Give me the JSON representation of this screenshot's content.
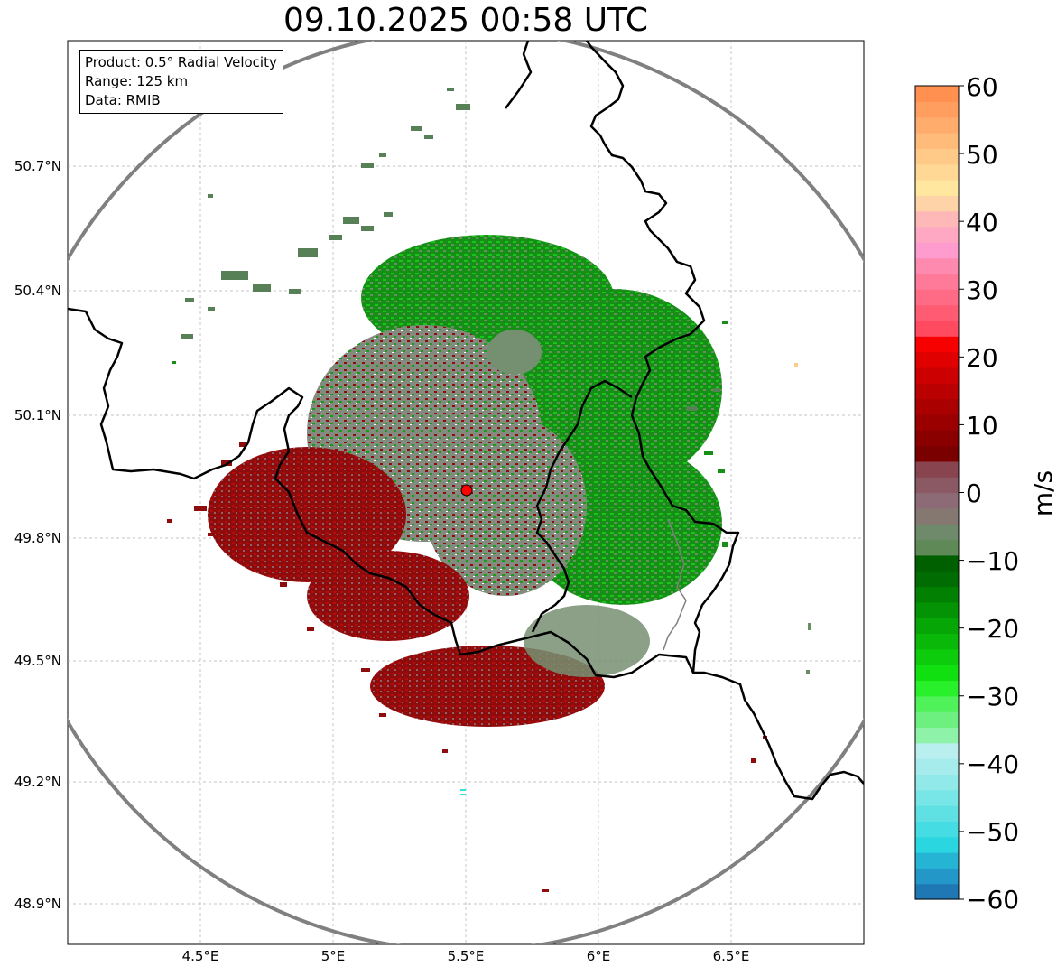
{
  "title": "09.10.2025 00:58 UTC",
  "info": {
    "product": "Product: 0.5° Radial Velocity",
    "range": "Range: 125 km",
    "data": "Data: RMIB"
  },
  "axes": {
    "lat_labels": [
      "50.7°N",
      "50.4°N",
      "50.1°N",
      "49.8°N",
      "49.5°N",
      "49.2°N",
      "48.9°N"
    ],
    "lon_labels": [
      "4.5°E",
      "5°E",
      "5.5°E",
      "6°E",
      "6.5°E"
    ]
  },
  "colorbar": {
    "unit": "m/s",
    "min": -60,
    "max": 60,
    "tick_labels": [
      "60",
      "50",
      "40",
      "30",
      "20",
      "10",
      "0",
      "−10",
      "−20",
      "−30",
      "−40",
      "−50",
      "−60"
    ],
    "colors": [
      "#1f77b4",
      "#2398c8",
      "#26b4d4",
      "#2ad6df",
      "#45dde3",
      "#5fe1e4",
      "#78e5e6",
      "#91e9ea",
      "#a6ecec",
      "#b9efef",
      "#8ef2a8",
      "#6df07f",
      "#4ff258",
      "#28f02a",
      "#10e010",
      "#0ccc0c",
      "#09b809",
      "#06a606",
      "#049304",
      "#028002",
      "#016c01",
      "#006000",
      "#5f8a58",
      "#6e8a6a",
      "#857870",
      "#8c6a76",
      "#8a5964",
      "#884550",
      "#7a0000",
      "#8a0000",
      "#9a0000",
      "#aa0000",
      "#ba0000",
      "#cc0000",
      "#e00000",
      "#f70000",
      "#ff4a60",
      "#ff5c73",
      "#ff6b85",
      "#ff7a98",
      "#ff8ab0",
      "#ff9ccf",
      "#ffa8c4",
      "#ffb8b8",
      "#ffd3a8",
      "#ffe7a0",
      "#ffd896",
      "#ffc987",
      "#ffbb7a",
      "#ffac6c",
      "#ff9e5e",
      "#ff9050"
    ]
  },
  "radar": {
    "site_marker": "radar-site",
    "site_color": "#ff0000"
  }
}
